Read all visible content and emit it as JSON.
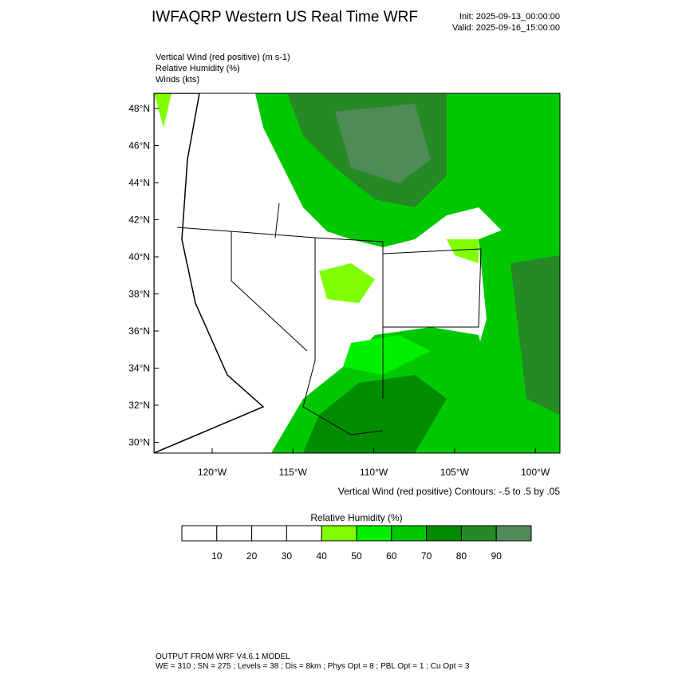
{
  "header": {
    "title": "IWFAQRP Western US Real Time WRF",
    "init": "Init: 2025-09-13_00:00:00",
    "valid": "Valid: 2025-09-16_15:00:00"
  },
  "fields": [
    "Vertical Wind (red positive)   (m s-1)",
    "Relative Humidity   (%)",
    "Winds   (kts)"
  ],
  "map": {
    "lat_labels": [
      "48°N",
      "46°N",
      "44°N",
      "42°N",
      "40°N",
      "38°N",
      "36°N",
      "34°N",
      "32°N",
      "30°N"
    ],
    "lon_labels": [
      "120°W",
      "115°W",
      "110°W",
      "105°W",
      "100°W"
    ],
    "contour_note": "Vertical Wind (red positive) Contours: -.5 to .5 by .05"
  },
  "colorbar": {
    "title": "Relative Humidity   (%)",
    "colors": [
      "#ffffff",
      "#ffffff",
      "#ffffff",
      "#ffffff",
      "#80ff00",
      "#00f000",
      "#00c800",
      "#008c00",
      "#258a25",
      "#4f8a58"
    ],
    "labels": [
      "10",
      "20",
      "30",
      "40",
      "50",
      "60",
      "70",
      "80",
      "90"
    ]
  },
  "footer": {
    "line1": "OUTPUT FROM WRF V4.6.1 MODEL",
    "line2": "WE = 310 ; SN = 275 ; Levels = 38 ; Dis = 8km ; Phys Opt = 8 ; PBL Opt = 1 ; Cu Opt = 3"
  }
}
